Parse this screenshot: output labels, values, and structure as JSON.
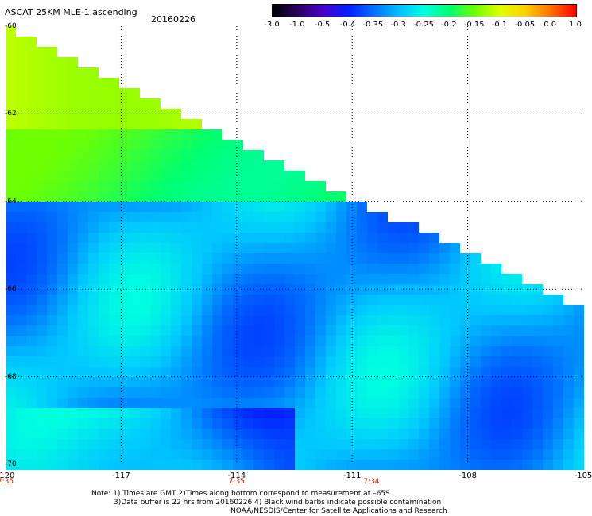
{
  "header": {
    "title": "ASCAT 25KM MLE-1 ascending",
    "date": "20160226"
  },
  "colorbar": {
    "labels": [
      "-3.0",
      "-1.0",
      "-0.5",
      "-0.4",
      "-0.35",
      "-0.3",
      "-0.25",
      "-0.2",
      "-0.15",
      "-0.1",
      "-0.05",
      "0.0",
      "1.0"
    ],
    "colors": [
      "#000000",
      "#2a0060",
      "#4a00c8",
      "#0020ff",
      "#0070ff",
      "#00c0ff",
      "#00ffe0",
      "#00ff70",
      "#70ff00",
      "#e0ff00",
      "#ffd000",
      "#ff7000",
      "#ff0000"
    ]
  },
  "map": {
    "lon_range": [
      -120,
      -105
    ],
    "lat_range": [
      -60,
      -70
    ],
    "lon_ticks": [
      "-120",
      "-117",
      "-114",
      "-111",
      "-108",
      "-105"
    ],
    "lat_ticks": [
      "-60",
      "-62",
      "-64",
      "-66",
      "-68",
      "-70"
    ],
    "time_labels": [
      "7:35",
      "7:35",
      "7:34"
    ],
    "time_lons": [
      -120,
      -114,
      -110.5
    ],
    "swath_edge_note": "data only below/left of diagonal swath edge"
  },
  "footer": {
    "note1": "Note: 1) Times are GMT 2)Times along bottom correspond to measurement at –65S",
    "note2": "3)Data buffer is 22 hrs from 20160226 4) Black wind barbs indicate possible contamination",
    "note3": "NOAA/NESDIS/Center for Satellite Applications and Research"
  }
}
